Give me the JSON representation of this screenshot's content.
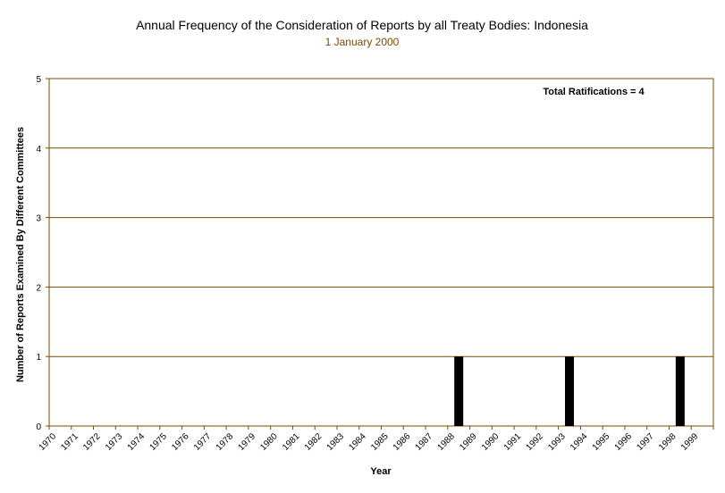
{
  "chart_data": {
    "type": "bar",
    "title": "Annual Frequency of the Consideration of Reports by all Treaty Bodies: Indonesia",
    "subtitle": "1 January 2000",
    "xlabel": "Year",
    "ylabel": "Number of Reports Examined By Different Committees",
    "annotation": "Total Ratifications = 4",
    "ylim": [
      0,
      5
    ],
    "yticks": [
      "0",
      "1",
      "2",
      "3",
      "4",
      "5"
    ],
    "grid": true,
    "categories": [
      "1970",
      "1971",
      "1972",
      "1973",
      "1974",
      "1975",
      "1976",
      "1977",
      "1978",
      "1979",
      "1980",
      "1981",
      "1982",
      "1983",
      "1984",
      "1985",
      "1986",
      "1987",
      "1988",
      "1989",
      "1990",
      "1991",
      "1992",
      "1993",
      "1994",
      "1995",
      "1996",
      "1997",
      "1998",
      "1999"
    ],
    "values": [
      0,
      0,
      0,
      0,
      0,
      0,
      0,
      0,
      0,
      0,
      0,
      0,
      0,
      0,
      0,
      0,
      0,
      0,
      1,
      0,
      0,
      0,
      0,
      1,
      0,
      0,
      0,
      0,
      1,
      0
    ],
    "colors": {
      "bar": "#000000",
      "grid": "#7a4b00",
      "frame": "#7a4b00",
      "subtitle": "#7a4b00"
    }
  }
}
